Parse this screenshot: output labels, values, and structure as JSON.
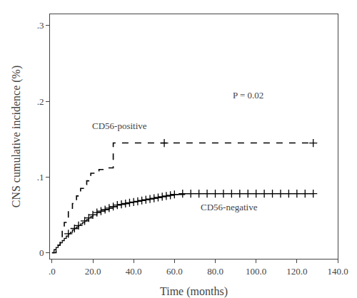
{
  "chart_data": {
    "type": "line",
    "xlabel": "Time (months)",
    "ylabel": "CNS cumulative incidence (%)",
    "xlim": [
      -1,
      140
    ],
    "ylim": [
      -0.008,
      0.315
    ],
    "xticks": [
      {
        "value": 0,
        "label": ".0"
      },
      {
        "value": 20,
        "label": "20.0"
      },
      {
        "value": 40,
        "label": "40.0"
      },
      {
        "value": 60,
        "label": "60.0"
      },
      {
        "value": 80,
        "label": "80.0"
      },
      {
        "value": 100,
        "label": "100.0"
      },
      {
        "value": 120,
        "label": "120.0"
      },
      {
        "value": 140,
        "label": "140.0"
      }
    ],
    "yticks": [
      0,
      {
        "value": 0.1,
        "label": ".1"
      },
      {
        "value": 0.2,
        "label": ".2"
      },
      {
        "value": 0.3,
        "label": ".3"
      }
    ],
    "grid": false,
    "series": [
      {
        "type": "step",
        "line_style": "dashed",
        "color": "#000000",
        "x": [
          0,
          2,
          4,
          5,
          6,
          8,
          10,
          12,
          14,
          16,
          17,
          18,
          19,
          21,
          23,
          26,
          28,
          30,
          55,
          65,
          128
        ],
        "values": [
          0,
          0.01,
          0.02,
          0.03,
          0.04,
          0.055,
          0.065,
          0.075,
          0.085,
          0.09,
          0.095,
          0.1,
          0.105,
          0.108,
          0.11,
          0.112,
          0.112,
          0.145,
          0.145,
          0.145,
          0.145
        ]
      },
      {
        "type": "step",
        "line_style": "solid",
        "color": "#000000",
        "x": [
          0,
          1,
          2,
          3,
          4,
          5,
          6,
          7,
          8,
          9,
          10,
          11,
          12,
          13,
          14,
          15,
          16,
          17,
          18,
          19,
          20,
          22,
          24,
          26,
          28,
          30,
          32,
          34,
          36,
          38,
          40,
          42,
          44,
          46,
          48,
          50,
          52,
          54,
          56,
          58,
          60,
          65,
          70,
          128
        ],
        "values": [
          0,
          0.004,
          0.007,
          0.01,
          0.013,
          0.016,
          0.019,
          0.022,
          0.025,
          0.027,
          0.03,
          0.032,
          0.034,
          0.036,
          0.038,
          0.04,
          0.042,
          0.044,
          0.046,
          0.048,
          0.05,
          0.053,
          0.055,
          0.057,
          0.059,
          0.061,
          0.063,
          0.064,
          0.065,
          0.066,
          0.067,
          0.068,
          0.069,
          0.07,
          0.071,
          0.072,
          0.073,
          0.074,
          0.075,
          0.076,
          0.077,
          0.078,
          0.078,
          0.078
        ]
      },
      {
        "type": "scatter",
        "marker": "plus",
        "color": "#000000",
        "x": [
          55,
          128
        ],
        "values": [
          0.145,
          0.145
        ]
      },
      {
        "type": "scatter",
        "marker": "plus",
        "color": "#000000",
        "x": [
          8,
          11,
          13,
          16,
          18,
          20,
          22,
          24,
          26,
          28,
          30,
          32,
          34,
          36,
          38,
          40,
          42,
          44,
          46,
          48,
          50,
          52,
          54,
          56,
          58,
          60,
          64,
          68,
          72,
          76,
          80,
          84,
          88,
          92,
          96,
          100,
          104,
          108,
          112,
          116,
          120,
          124,
          128
        ],
        "values": [
          0.025,
          0.032,
          0.036,
          0.042,
          0.046,
          0.05,
          0.053,
          0.055,
          0.057,
          0.059,
          0.061,
          0.063,
          0.064,
          0.065,
          0.066,
          0.067,
          0.068,
          0.069,
          0.07,
          0.071,
          0.072,
          0.073,
          0.074,
          0.075,
          0.076,
          0.077,
          0.078,
          0.078,
          0.078,
          0.078,
          0.078,
          0.078,
          0.078,
          0.078,
          0.078,
          0.078,
          0.078,
          0.078,
          0.078,
          0.078,
          0.078,
          0.078,
          0.078
        ]
      }
    ],
    "annotations": [
      {
        "text": "P = 0.02",
        "x": 88,
        "y": 0.208
      },
      {
        "text": "CD56-positive",
        "x": 19,
        "y": 0.168
      },
      {
        "text": "CD56-negative",
        "x": 72,
        "y": 0.06
      }
    ]
  }
}
